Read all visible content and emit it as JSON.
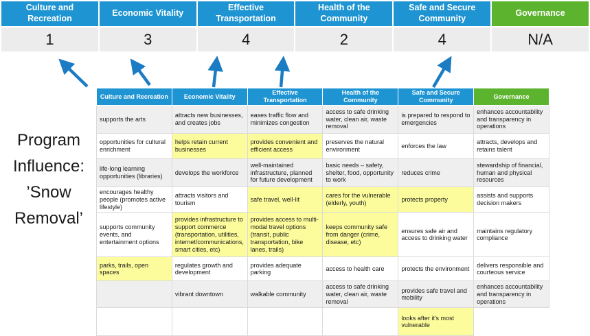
{
  "program_label": {
    "full_text": "Program Influence: ’Snow Removal’",
    "lines": [
      "Program",
      "Influence:",
      "’Snow",
      "Removal’"
    ]
  },
  "colors": {
    "header_blue": "#1E94D2",
    "header_green": "#5CB32D",
    "arrow_blue": "#1B7CC4",
    "score_band_bg": "#ECECEC",
    "highlight_yellow": "#FCFC9C",
    "shaded_row_gray": "#EFEFEF"
  },
  "scoreboard": {
    "columns": [
      {
        "label": "Culture and Recreation",
        "score": "1",
        "theme": "blue"
      },
      {
        "label": "Economic Vitality",
        "score": "3",
        "theme": "blue"
      },
      {
        "label": "Effective Transportation",
        "score": "4",
        "theme": "blue"
      },
      {
        "label": "Health of the Community",
        "score": "2",
        "theme": "blue"
      },
      {
        "label": "Safe and Secure Community",
        "score": "4",
        "theme": "blue"
      },
      {
        "label": "Governance",
        "score": "N/A",
        "theme": "green"
      }
    ]
  },
  "matrix": {
    "headers": [
      {
        "label": "Culture and Recreation",
        "theme": "blue"
      },
      {
        "label": "Economic Vitality",
        "theme": "blue"
      },
      {
        "label": "Effective Transportation",
        "theme": "blue"
      },
      {
        "label": "Health of the Community",
        "theme": "blue"
      },
      {
        "label": "Safe and Secure Community",
        "theme": "blue"
      },
      {
        "label": "Governance",
        "theme": "green"
      }
    ],
    "rows": [
      {
        "shaded": true,
        "cells": [
          {
            "text": "supports the arts",
            "highlight": false
          },
          {
            "text": "attracts new businesses, and creates jobs",
            "highlight": false
          },
          {
            "text": "eases traffic flow and minimizes congestion",
            "highlight": true
          },
          {
            "text": "access to safe drinking water, clean air, waste removal",
            "highlight": false
          },
          {
            "text": "is prepared to respond to emergencies",
            "highlight": true
          },
          {
            "text": "enhances accountability and transparency in operations",
            "highlight": false
          }
        ]
      },
      {
        "shaded": false,
        "cells": [
          {
            "text": "opportunities for cultural enrichment",
            "highlight": false
          },
          {
            "text": "helps retain current businesses",
            "highlight": true
          },
          {
            "text": "provides convenient and efficient access",
            "highlight": true
          },
          {
            "text": "preserves the natural environment",
            "highlight": false
          },
          {
            "text": "enforces the law",
            "highlight": false
          },
          {
            "text": "attracts, develops and retains talent",
            "highlight": false
          }
        ]
      },
      {
        "shaded": true,
        "cells": [
          {
            "text": "life-long learning opportunities (libraries)",
            "highlight": false
          },
          {
            "text": "develops the workforce",
            "highlight": false
          },
          {
            "text": "well-maintained infrastructure, planned for future development",
            "highlight": false
          },
          {
            "text": "basic needs – safety, shelter, food, opportunity to work",
            "highlight": true
          },
          {
            "text": "reduces crime",
            "highlight": false
          },
          {
            "text": "stewardship of financial, human and physical resources",
            "highlight": false
          }
        ]
      },
      {
        "shaded": false,
        "cells": [
          {
            "text": "encourages healthy people (promotes active lifestyle)",
            "highlight": false
          },
          {
            "text": "attracts visitors and tourism",
            "highlight": false
          },
          {
            "text": "safe travel, well-lit",
            "highlight": true
          },
          {
            "text": "cares for the vulnerable (elderly, youth)",
            "highlight": true
          },
          {
            "text": "protects property",
            "highlight": true
          },
          {
            "text": "assists and supports decision makers",
            "highlight": false
          }
        ]
      },
      {
        "shaded": false,
        "cells": [
          {
            "text": "supports community events, and entertainment options",
            "highlight": false
          },
          {
            "text": "provides infrastructure to support commerce (transportation, utilities, internet/communications, smart cities, etc)",
            "highlight": true
          },
          {
            "text": "provides access to multi-modal travel options (transit, public transportation, bike lanes, trails)",
            "highlight": true
          },
          {
            "text": "keeps community safe from danger (crime, disease, etc)",
            "highlight": true
          },
          {
            "text": "ensures safe air and access to drinking water",
            "highlight": false
          },
          {
            "text": "maintains regulatory compliance",
            "highlight": false
          }
        ]
      },
      {
        "shaded": false,
        "cells": [
          {
            "text": "parks, trails, open spaces",
            "highlight": true
          },
          {
            "text": "regulates growth and development",
            "highlight": false
          },
          {
            "text": "provides adequate parking",
            "highlight": false
          },
          {
            "text": "access to health care",
            "highlight": false
          },
          {
            "text": "protects the environment",
            "highlight": false
          },
          {
            "text": "delivers responsible and courteous service",
            "highlight": false
          }
        ]
      },
      {
        "shaded": true,
        "cells": [
          {
            "text": "",
            "highlight": false
          },
          {
            "text": "vibrant downtown",
            "highlight": false
          },
          {
            "text": "walkable community",
            "highlight": false
          },
          {
            "text": "access to safe drinking water, clean air, waste removal",
            "highlight": false
          },
          {
            "text": "provides safe travel and mobility",
            "highlight": true
          },
          {
            "text": "enhances accountability and transparency in operations",
            "highlight": false
          }
        ]
      },
      {
        "shaded": false,
        "cells": [
          {
            "text": "",
            "highlight": false
          },
          {
            "text": "",
            "highlight": false
          },
          {
            "text": "",
            "highlight": false
          },
          {
            "text": "",
            "highlight": false
          },
          {
            "text": "looks after it's most vulnerable",
            "highlight": true
          },
          {
            "text": "",
            "highlight": false,
            "absent": true
          }
        ]
      }
    ]
  }
}
